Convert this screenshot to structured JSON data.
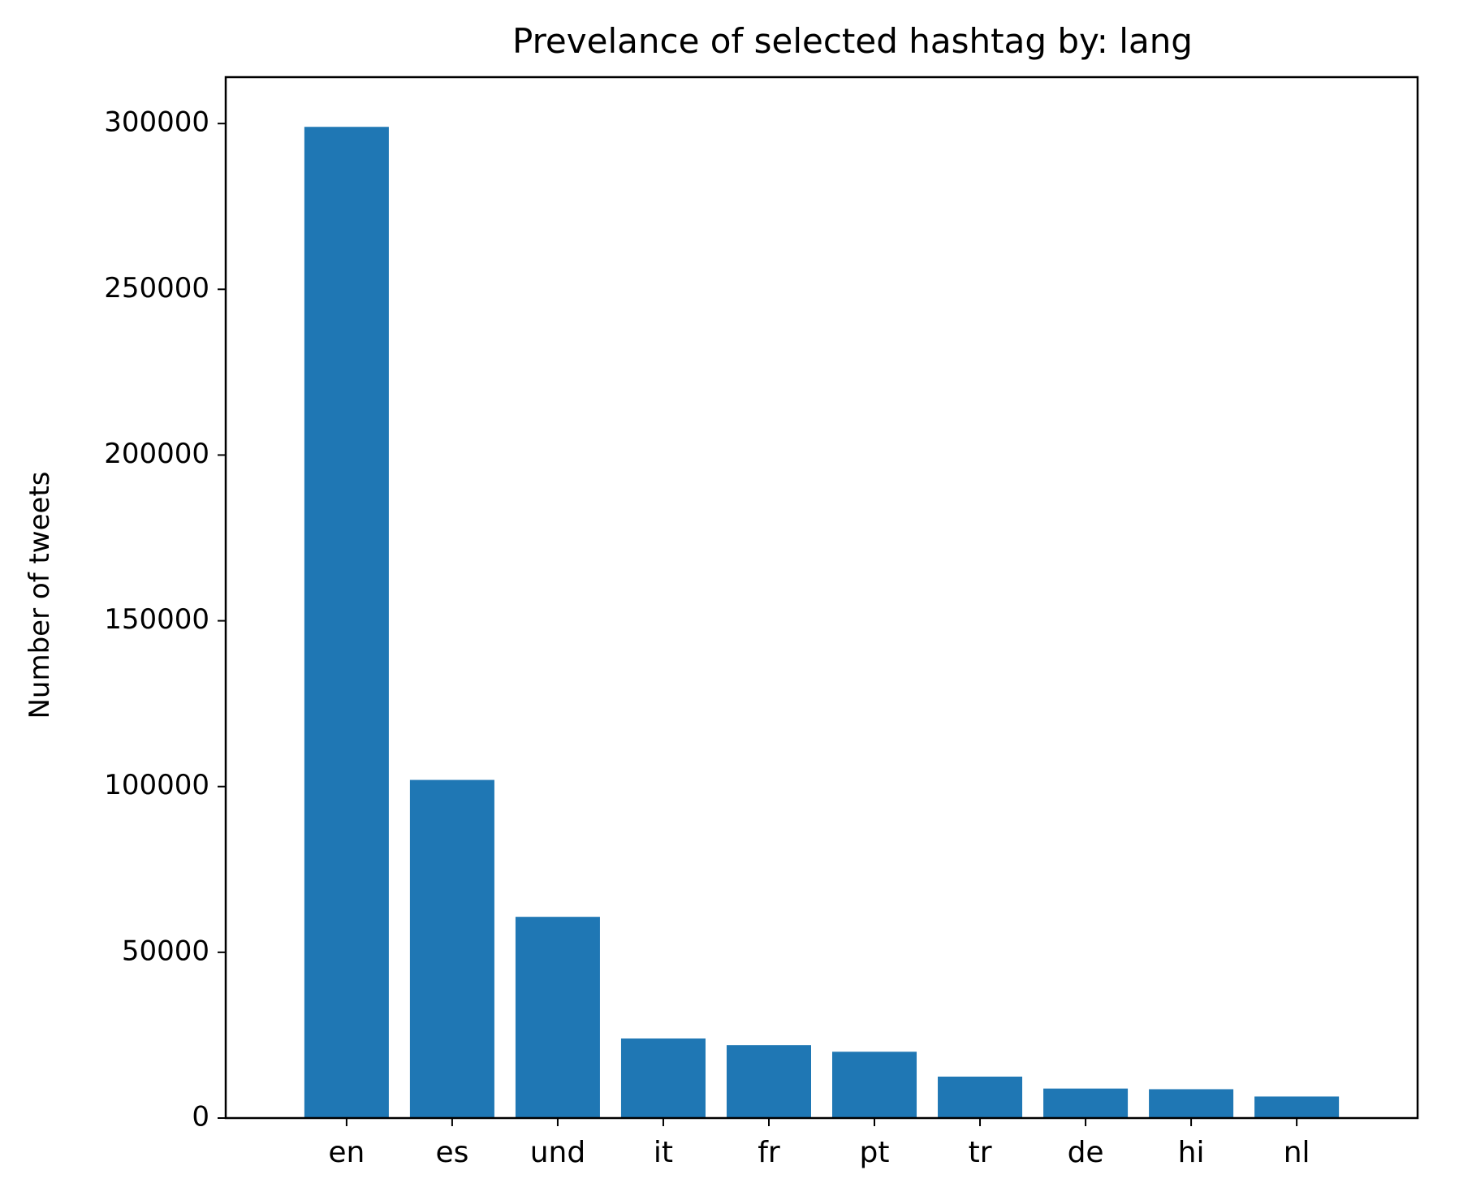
{
  "chart_data": {
    "type": "bar",
    "title": "Prevelance of selected hashtag by: lang",
    "xlabel": "",
    "ylabel": "Number of tweets",
    "categories": [
      "en",
      "es",
      "und",
      "it",
      "fr",
      "pt",
      "tr",
      "de",
      "hi",
      "nl"
    ],
    "values": [
      299000,
      102000,
      60700,
      24000,
      22000,
      20000,
      12500,
      8900,
      8700,
      6500
    ],
    "ylim": [
      0,
      314000
    ],
    "yticks": [
      0,
      50000,
      100000,
      150000,
      200000,
      250000,
      300000
    ],
    "ytick_labels": [
      "0",
      "50000",
      "100000",
      "150000",
      "200000",
      "250000",
      "300000"
    ],
    "bar_color": "#1f77b4",
    "grid": false,
    "legend": "none"
  }
}
